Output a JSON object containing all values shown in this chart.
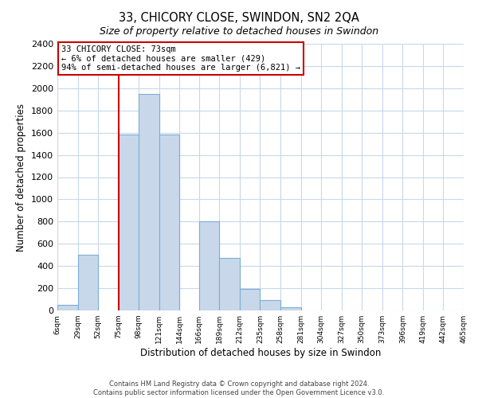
{
  "title1": "33, CHICORY CLOSE, SWINDON, SN2 2QA",
  "title2": "Size of property relative to detached houses in Swindon",
  "xlabel": "Distribution of detached houses by size in Swindon",
  "ylabel": "Number of detached properties",
  "footer1": "Contains HM Land Registry data © Crown copyright and database right 2024.",
  "footer2": "Contains public sector information licensed under the Open Government Licence v3.0.",
  "annotation_title": "33 CHICORY CLOSE: 73sqm",
  "annotation_line1": "← 6% of detached houses are smaller (429)",
  "annotation_line2": "94% of semi-detached houses are larger (6,821) →",
  "vline_x": 75,
  "bar_edges": [
    6,
    29,
    52,
    75,
    98,
    121,
    144,
    166,
    189,
    212,
    235,
    258,
    281,
    304,
    327,
    350,
    373,
    396,
    419,
    442,
    465
  ],
  "bar_heights": [
    50,
    500,
    0,
    1580,
    1950,
    1580,
    0,
    800,
    470,
    190,
    90,
    30,
    0,
    0,
    0,
    0,
    0,
    0,
    0,
    0
  ],
  "bar_color": "#c8d8ea",
  "bar_edgecolor": "#7aafd4",
  "vline_color": "#cc0000",
  "annotation_box_edgecolor": "#cc0000",
  "ylim": [
    0,
    2400
  ],
  "yticks": [
    0,
    200,
    400,
    600,
    800,
    1000,
    1200,
    1400,
    1600,
    1800,
    2000,
    2200,
    2400
  ],
  "grid_color": "#c8d8ea",
  "background_color": "#ffffff"
}
